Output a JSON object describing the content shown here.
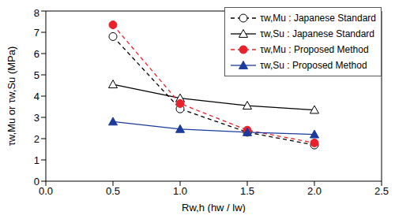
{
  "chart_data": {
    "type": "line",
    "x_label": "Rw,h (hw / lw)",
    "y_label": "τw,Mu or τw,Su (MPa)",
    "x": [
      0.5,
      1.0,
      1.5,
      2.0
    ],
    "xlim": [
      0,
      2.5
    ],
    "xticks": [
      {
        "value": 0,
        "label": "0.0"
      },
      {
        "value": 0.5,
        "label": "0.5"
      },
      {
        "value": 1,
        "label": "1.0"
      },
      {
        "value": 1.5,
        "label": "1.5"
      },
      {
        "value": 2,
        "label": "2.0"
      },
      {
        "value": 2.5,
        "label": "2.5"
      }
    ],
    "ylim": [
      0,
      8
    ],
    "yticks": [
      0,
      1,
      2,
      3,
      4,
      5,
      6,
      7,
      8
    ],
    "grid": false,
    "legend": "upper right",
    "series": [
      {
        "name": "τw,Mu : Japanese Standard",
        "color": "#000000",
        "marker": "open_circle",
        "line_style": "dashed",
        "values": [
          6.8,
          3.4,
          2.3,
          1.7
        ]
      },
      {
        "name": "τw,Su : Japanese Standard",
        "color": "#000000",
        "marker": "open_triangle",
        "line_style": "solid",
        "values": [
          4.55,
          3.9,
          3.55,
          3.35
        ]
      },
      {
        "name": "τw,Mu : Proposed Method",
        "color": "#e8212b",
        "marker": "circle",
        "line_style": "dashed",
        "values": [
          7.35,
          3.65,
          2.4,
          1.8
        ]
      },
      {
        "name": "τw,Su : Proposed Method",
        "color": "#1a3a9c",
        "marker": "triangle",
        "line_style": "solid",
        "values": [
          2.8,
          2.45,
          2.3,
          2.2
        ]
      }
    ]
  }
}
